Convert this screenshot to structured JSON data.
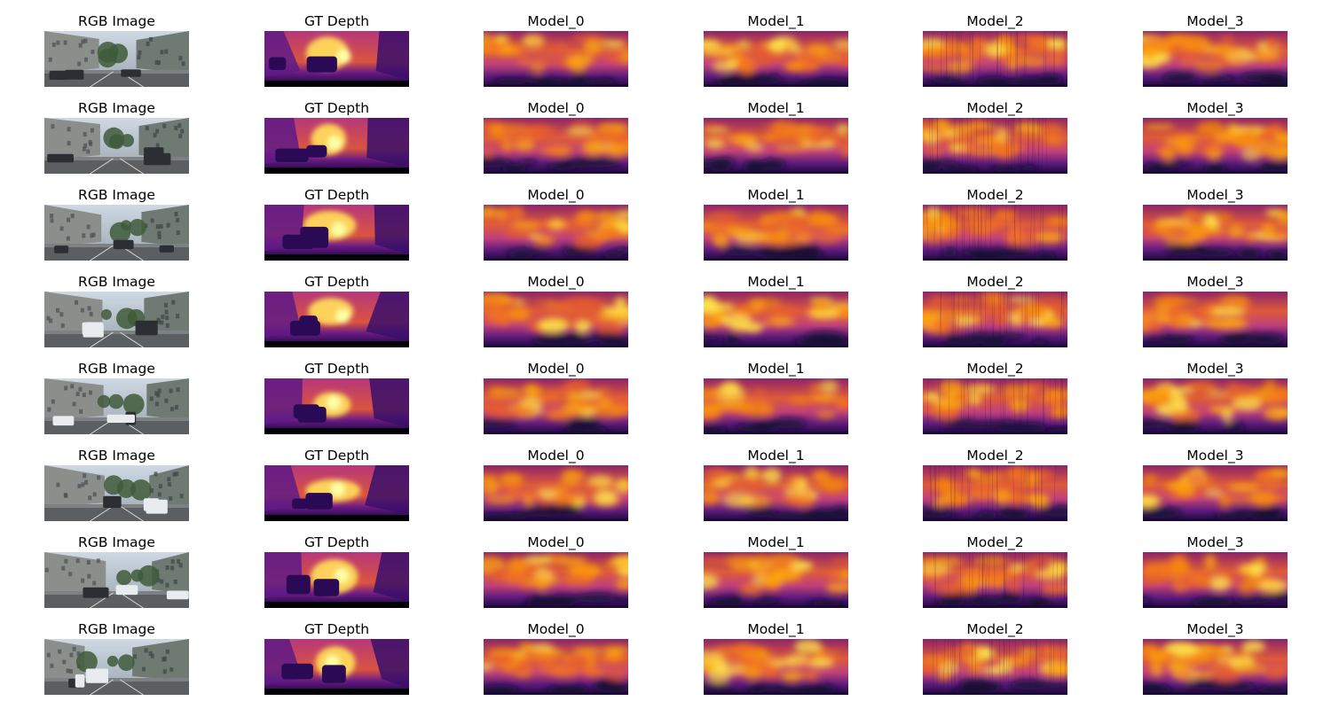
{
  "figure": {
    "column_titles": [
      "RGB Image",
      "GT Depth",
      "Model_0",
      "Model_1",
      "Model_2",
      "Model_3"
    ],
    "row_count": 8,
    "panel_kinds": [
      "rgb-photo",
      "depth-map",
      "depth-map",
      "depth-map",
      "depth-map",
      "depth-map"
    ],
    "colormap": [
      "#000004",
      "#420a68",
      "#932667",
      "#dd513a",
      "#fca50a",
      "#fcffa4"
    ]
  }
}
